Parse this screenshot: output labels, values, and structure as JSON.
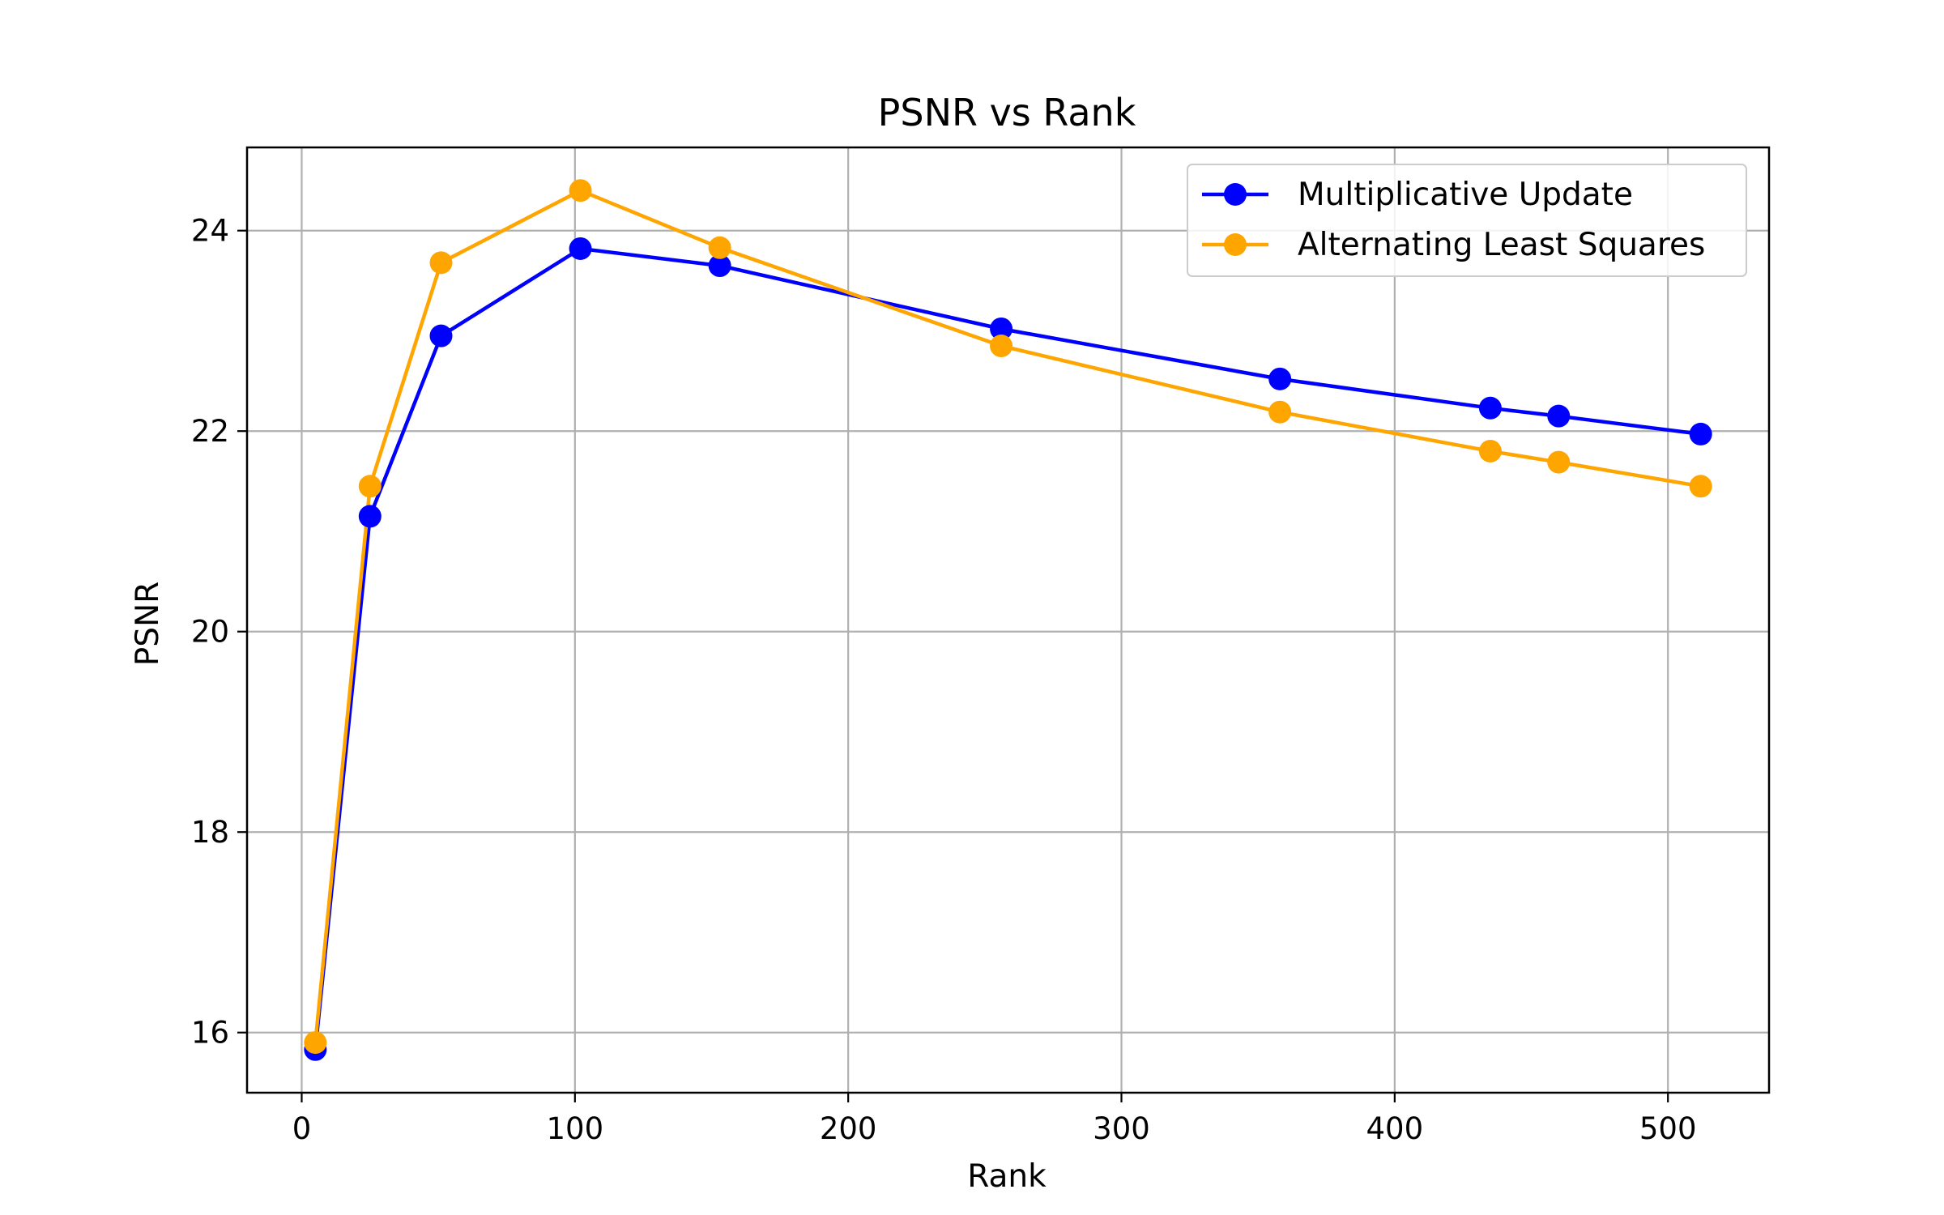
{
  "chart_data": {
    "type": "line",
    "title": "PSNR vs Rank",
    "xlabel": "Rank",
    "ylabel": "PSNR",
    "xlim": [
      -20,
      537
    ],
    "ylim": [
      15.4,
      24.83
    ],
    "xticks": [
      0,
      100,
      200,
      300,
      400,
      500
    ],
    "yticks": [
      16,
      18,
      20,
      22,
      24
    ],
    "grid": true,
    "legend_position": "top-right",
    "series": [
      {
        "name": "Multiplicative Update",
        "color": "#0000ff",
        "marker": "circle",
        "x": [
          5,
          25,
          51,
          102,
          153,
          256,
          358,
          435,
          460,
          512
        ],
        "y": [
          15.83,
          21.15,
          22.95,
          23.82,
          23.65,
          23.02,
          22.52,
          22.23,
          22.15,
          21.97
        ]
      },
      {
        "name": "Alternating Least Squares",
        "color": "#ffa500",
        "marker": "circle",
        "x": [
          5,
          25,
          51,
          102,
          153,
          256,
          358,
          435,
          460,
          512
        ],
        "y": [
          15.9,
          21.45,
          23.68,
          24.4,
          23.83,
          22.85,
          22.19,
          21.8,
          21.69,
          21.45
        ]
      }
    ]
  }
}
